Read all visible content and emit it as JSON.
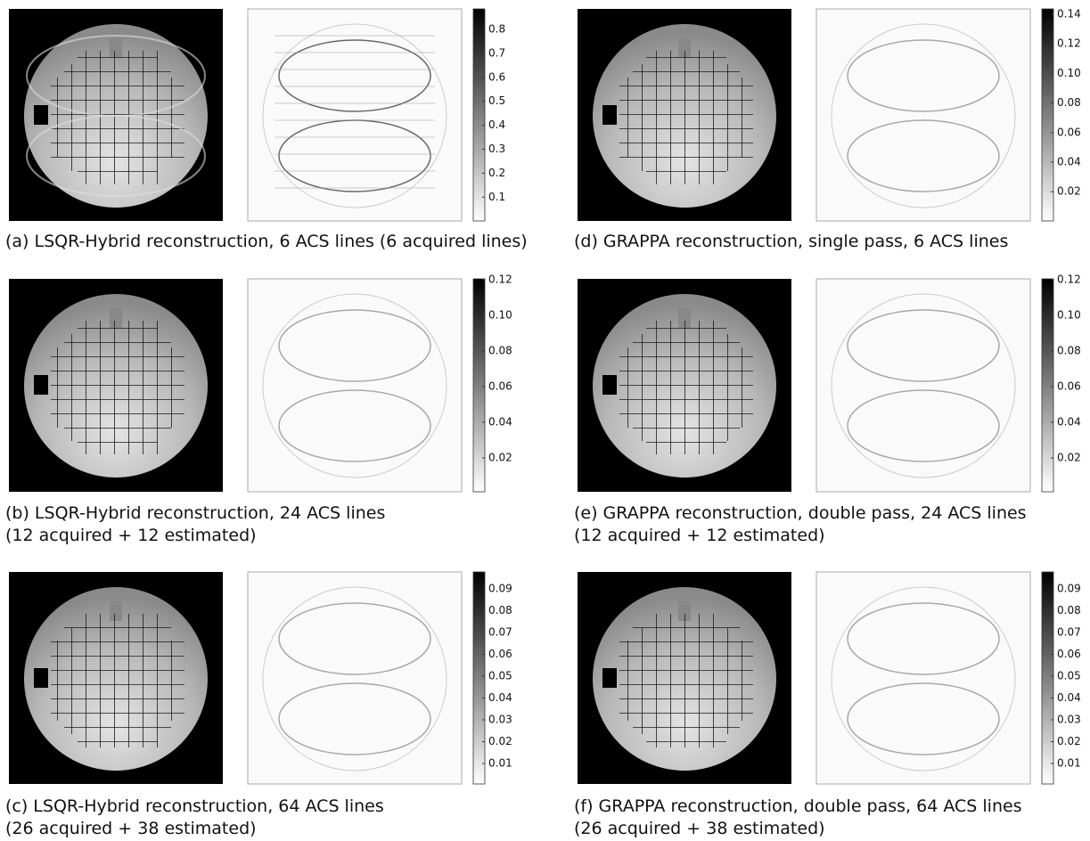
{
  "panels": [
    {
      "caption": [
        "(a) LSQR-Hybrid reconstruction, 6 ACS lines (6 acquired lines)"
      ],
      "colorbar_ticks": [
        "0.8",
        "0.7",
        "0.6",
        "0.5",
        "0.4",
        "0.3",
        "0.2",
        "0.1"
      ]
    },
    {
      "caption": [
        "(b) LSQR-Hybrid reconstruction, 24 ACS lines",
        "(12 acquired + 12 estimated)"
      ],
      "colorbar_ticks": [
        "0.12",
        "0.10",
        "0.08",
        "0.06",
        "0.04",
        "0.02"
      ]
    },
    {
      "caption": [
        "(c) LSQR-Hybrid reconstruction, 64 ACS lines",
        "(26 acquired + 38 estimated)"
      ],
      "colorbar_ticks": [
        "0.09",
        "0.08",
        "0.07",
        "0.06",
        "0.05",
        "0.04",
        "0.03",
        "0.02",
        "0.01"
      ]
    },
    {
      "caption": [
        "(d) GRAPPA reconstruction, single pass, 6 ACS lines"
      ],
      "colorbar_ticks": [
        "0.14",
        "0.12",
        "0.10",
        "0.08",
        "0.06",
        "0.04",
        "0.02"
      ]
    },
    {
      "caption": [
        "(e) GRAPPA reconstruction, double pass, 24 ACS lines",
        "(12 acquired + 12 estimated)"
      ],
      "colorbar_ticks": [
        "0.12",
        "0.10",
        "0.08",
        "0.06",
        "0.04",
        "0.02"
      ]
    },
    {
      "caption": [
        "(f) GRAPPA reconstruction, double pass, 64 ACS lines",
        "(26 acquired + 38 estimated)"
      ],
      "colorbar_ticks": [
        "0.09",
        "0.08",
        "0.07",
        "0.06",
        "0.05",
        "0.04",
        "0.03",
        "0.02",
        "0.01"
      ]
    }
  ]
}
